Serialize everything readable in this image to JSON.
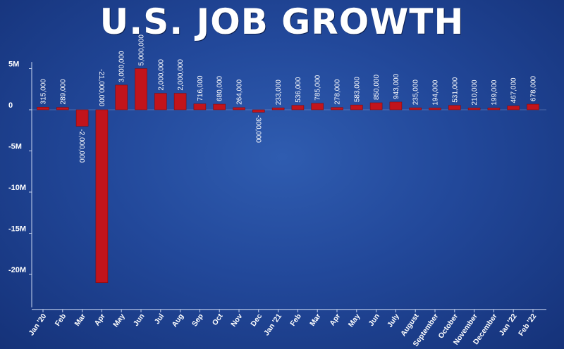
{
  "chart_data": {
    "type": "bar",
    "title": "U.S. JOB GROWTH",
    "xlabel": "",
    "ylabel": "",
    "ylim": [
      -24000000,
      5800000
    ],
    "grid": false,
    "legend": "none",
    "colors": {
      "bar": "#c2141b",
      "bar_edge": "#7e0b10",
      "axis": "#c9d6f0",
      "text": "#ffffff"
    },
    "yticks": [
      {
        "value": 5000000,
        "label": "5M"
      },
      {
        "value": 0,
        "label": "0"
      },
      {
        "value": -5000000,
        "label": "-5M"
      },
      {
        "value": -10000000,
        "label": "-10M"
      },
      {
        "value": -15000000,
        "label": "-15M"
      },
      {
        "value": -20000000,
        "label": "-20M"
      }
    ],
    "categories": [
      "Jan '20",
      "Feb",
      "Mar",
      "Apr",
      "May",
      "Jun",
      "Jul",
      "Aug",
      "Sep",
      "Oct",
      "Nov",
      "Dec",
      "Jan '21",
      "Feb",
      "Mar",
      "Apr",
      "May",
      "Jun",
      "July",
      "August",
      "September",
      "October",
      "November",
      "December",
      "Jan '22",
      "Feb '22"
    ],
    "values": [
      315000,
      289000,
      -2000000,
      -21000000,
      3000000,
      5000000,
      2000000,
      2000000,
      716000,
      680000,
      264000,
      -300000,
      233000,
      536000,
      785000,
      278000,
      583000,
      850000,
      943000,
      235000,
      194000,
      531000,
      210000,
      199000,
      467000,
      678000
    ],
    "data_labels": [
      "315,000",
      "289,000",
      "-2,000,000",
      "-21,000,000",
      "3,000,000",
      "5,000,000",
      "2,000,000",
      "2,000,000",
      "716,000",
      "680,000",
      "264,000",
      "-300,000",
      "233,000",
      "536,000",
      "785,000",
      "278,000",
      "583,000",
      "850,000",
      "943,000",
      "235,000",
      "194,000",
      "531,000",
      "210,000",
      "199,000",
      "467,000",
      "678,000"
    ]
  }
}
